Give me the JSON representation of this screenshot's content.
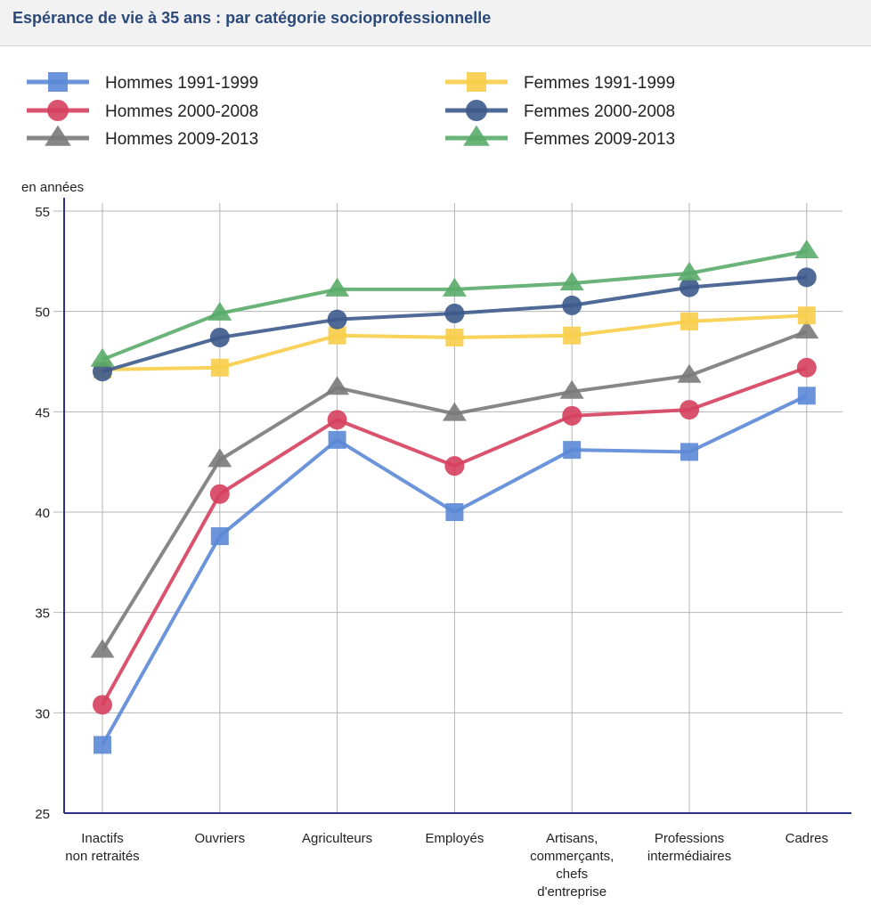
{
  "page": {
    "title": "Espérance de vie à 35 ans : par catégorie socioprofessionnelle"
  },
  "chart_data": {
    "type": "line",
    "title": "Espérance de vie à 35 ans : par catégorie socioprofessionnelle",
    "ylabel": "en années",
    "xlabel": "",
    "ylim": [
      25,
      55
    ],
    "yticks": [
      25,
      30,
      35,
      40,
      45,
      50,
      55
    ],
    "grid": true,
    "legend_position": "top",
    "categories": [
      [
        "Inactifs",
        "non retraités"
      ],
      [
        "Ouvriers"
      ],
      [
        "Agriculteurs"
      ],
      [
        "Employés"
      ],
      [
        "Artisans,",
        "commerçants,",
        "chefs",
        "d'entreprise"
      ],
      [
        "Professions",
        "intermédiaires"
      ],
      [
        "Cadres"
      ]
    ],
    "series": [
      {
        "name": "Hommes 1991-1999",
        "color": "#5b88d6",
        "marker": "square",
        "values": [
          28.4,
          38.8,
          43.6,
          40.0,
          43.1,
          43.0,
          45.8
        ]
      },
      {
        "name": "Hommes 2000-2008",
        "color": "#d6405e",
        "marker": "circle",
        "values": [
          30.4,
          40.9,
          44.6,
          42.3,
          44.8,
          45.1,
          47.2
        ]
      },
      {
        "name": "Hommes 2009-2013",
        "color": "#7a7a7a",
        "marker": "triangle",
        "values": [
          33.1,
          42.6,
          46.2,
          44.9,
          46.0,
          46.8,
          49.0
        ]
      },
      {
        "name": "Femmes 1991-1999",
        "color": "#f7cd48",
        "marker": "square",
        "values": [
          47.1,
          47.2,
          48.8,
          48.7,
          48.8,
          49.5,
          49.8
        ]
      },
      {
        "name": "Femmes 2000-2008",
        "color": "#3d5a8c",
        "marker": "circle",
        "values": [
          47.0,
          48.7,
          49.6,
          49.9,
          50.3,
          51.2,
          51.7
        ]
      },
      {
        "name": "Femmes 2009-2013",
        "color": "#5aab6a",
        "marker": "triangle",
        "values": [
          47.6,
          49.9,
          51.1,
          51.1,
          51.4,
          51.9,
          53.0
        ]
      }
    ]
  }
}
